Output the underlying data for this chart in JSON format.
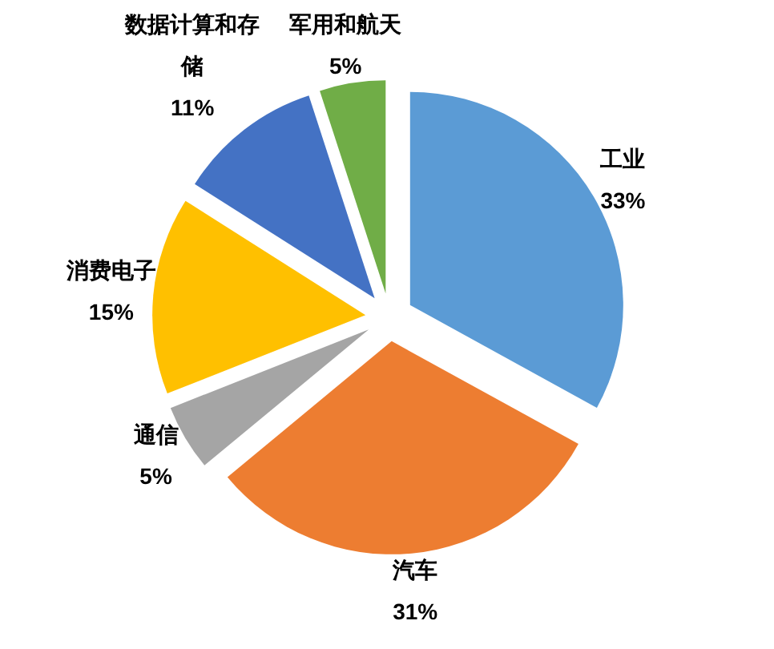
{
  "chart_data": {
    "type": "pie",
    "categories": [
      "工业",
      "汽车",
      "通信",
      "消费电子",
      "数据计算和存储",
      "军用和航天"
    ],
    "values": [
      33,
      31,
      5,
      15,
      11,
      5
    ],
    "colors": [
      "#5b9bd5",
      "#ed7d31",
      "#a5a5a5",
      "#ffc000",
      "#4472c4",
      "#70ad47"
    ],
    "value_labels": [
      "33%",
      "31%",
      "5%",
      "15%",
      "11%",
      "5%"
    ]
  }
}
